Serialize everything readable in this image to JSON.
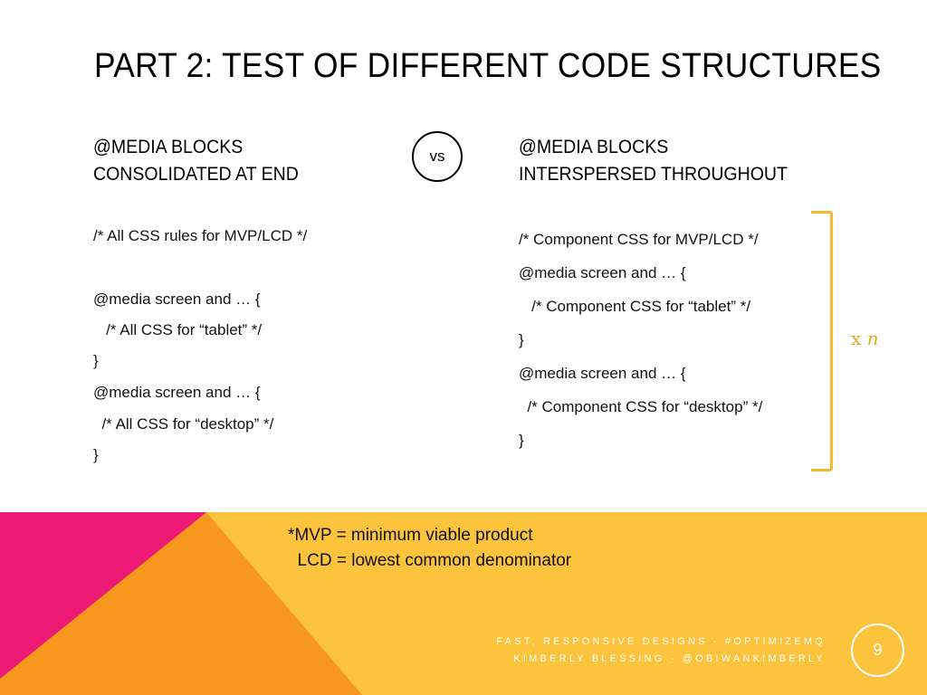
{
  "slide": {
    "title": "PART 2: TEST OF DIFFERENT CODE STRUCTURES",
    "vs_label": "vs",
    "left": {
      "heading": [
        "@MEDIA BLOCKS",
        "CONSOLIDATED AT END"
      ],
      "code": [
        "/* All CSS rules for MVP/LCD */",
        "@media screen and … {",
        "   /* All CSS for “tablet” */",
        "}",
        "@media screen and … {",
        "  /* All CSS for “desktop” */",
        "}"
      ]
    },
    "right": {
      "heading": [
        "@MEDIA BLOCKS",
        "INTERSPERSED THROUGHOUT"
      ],
      "code": [
        "/* Component CSS for MVP/LCD */",
        "@media screen and … {",
        "   /* Component CSS for “tablet” */",
        "}",
        "@media screen and … {",
        "  /* Component CSS for “desktop” */",
        "}"
      ],
      "repeat_prefix": "x",
      "repeat_var": "n"
    },
    "note": [
      "*MVP = minimum viable product",
      "  LCD = lowest common denominator"
    ],
    "footer": [
      "FAST, RESPONSIVE DESIGNS - #OPTIMIZEMQ",
      "KIMBERLY BLESSING - @OBIWANKIMBERLY"
    ],
    "page_number": "9"
  },
  "colors": {
    "band_yellow": "#fcc33c",
    "band_orange": "#f8971d",
    "band_pink": "#ec1a74",
    "bracket": "#f5b82e",
    "repeat_text": "#e6a817"
  }
}
